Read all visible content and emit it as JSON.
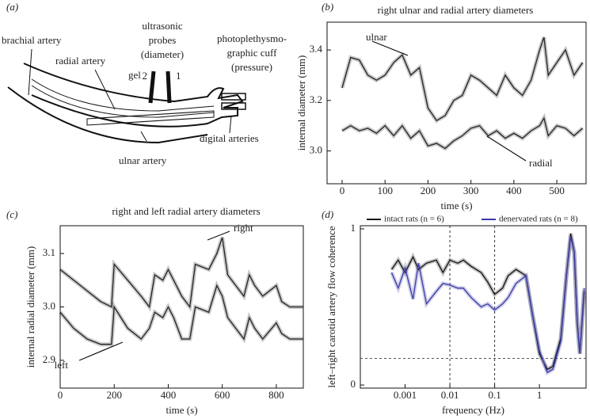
{
  "diagram": {
    "label": "(a)",
    "brachial": "brachial artery",
    "radial": "radial artery",
    "probes": [
      "ultrasonic",
      "probes",
      "(diameter)"
    ],
    "gel": "gel",
    "probe_numbers": [
      "2",
      "1"
    ],
    "cuff": [
      "photoplethysmo-",
      "graphic cuff",
      "(pressure)"
    ],
    "digital": "digital arteries",
    "ulnar": "ulnar artery"
  },
  "chart_data": [
    {
      "type": "line",
      "panel_label": "(b)",
      "title": "right ulnar and radial artery diameters",
      "x_label": "time (s)",
      "y_label": "internal diameter (mm)",
      "x": [
        0,
        20,
        40,
        60,
        80,
        100,
        120,
        140,
        160,
        180,
        200,
        220,
        240,
        260,
        280,
        300,
        320,
        340,
        360,
        380,
        400,
        420,
        440,
        460,
        470,
        480,
        500,
        520,
        540,
        560
      ],
      "series": [
        {
          "name": "ulnar",
          "color": "#222222",
          "values": [
            3.25,
            3.37,
            3.36,
            3.3,
            3.28,
            3.3,
            3.35,
            3.38,
            3.3,
            3.33,
            3.17,
            3.12,
            3.14,
            3.2,
            3.22,
            3.3,
            3.28,
            3.25,
            3.22,
            3.3,
            3.25,
            3.22,
            3.28,
            3.4,
            3.45,
            3.3,
            3.35,
            3.4,
            3.3,
            3.35
          ]
        },
        {
          "name": "radial",
          "color": "#222222",
          "values": [
            3.08,
            3.1,
            3.08,
            3.09,
            3.07,
            3.1,
            3.06,
            3.1,
            3.05,
            3.08,
            3.02,
            3.03,
            3.01,
            3.04,
            3.06,
            3.09,
            3.1,
            3.06,
            3.08,
            3.05,
            3.07,
            3.05,
            3.08,
            3.1,
            3.13,
            3.06,
            3.1,
            3.09,
            3.06,
            3.09
          ]
        }
      ],
      "xlim": [
        -35,
        568
      ],
      "xticks": [
        0,
        100,
        200,
        300,
        400,
        500
      ],
      "ylim": [
        2.87,
        3.51
      ],
      "yticks": [
        {
          "value": 3,
          "label": "3.0"
        },
        3.2,
        3.4
      ]
    },
    {
      "type": "line",
      "panel_label": "(c)",
      "title": "right and left radial artery diameters",
      "x_label": "time (s)",
      "y_label": "internal radial diameter (mm)",
      "x": [
        0,
        50,
        100,
        150,
        190,
        200,
        250,
        300,
        330,
        350,
        380,
        400,
        420,
        450,
        480,
        500,
        550,
        580,
        600,
        620,
        650,
        680,
        700,
        720,
        750,
        800,
        820,
        850,
        900
      ],
      "series": [
        {
          "name": "right",
          "color": "#222222",
          "values": [
            3.07,
            3.05,
            3.03,
            3.01,
            3.0,
            3.08,
            3.05,
            3.02,
            3.0,
            3.06,
            3.05,
            3.07,
            3.05,
            3.02,
            3.0,
            3.08,
            3.07,
            3.1,
            3.13,
            3.06,
            3.04,
            3.02,
            3.06,
            3.04,
            3.02,
            3.04,
            3.01,
            3.0,
            3.0
          ]
        },
        {
          "name": "left",
          "color": "#222222",
          "values": [
            2.99,
            2.96,
            2.94,
            2.93,
            2.93,
            3.0,
            2.96,
            2.94,
            2.96,
            2.99,
            2.98,
            3.0,
            2.98,
            2.94,
            2.94,
            3.0,
            2.99,
            3.04,
            3.02,
            2.98,
            2.96,
            2.94,
            2.98,
            2.96,
            2.94,
            2.97,
            2.95,
            2.94,
            2.94
          ]
        }
      ],
      "xlim": [
        0,
        900
      ],
      "xticks": [
        0,
        200,
        400,
        600,
        800
      ],
      "ylim": [
        2.848,
        3.152
      ],
      "yticks": [
        2.9,
        {
          "value": 3,
          "label": "3.0"
        },
        3.1
      ]
    },
    {
      "type": "line",
      "panel_label": "(d)",
      "x_label": "frequency (Hz)",
      "y_label": "left–right carotid artery flow coherence",
      "log_x": true,
      "legend": "top",
      "x": [
        0.0005,
        0.0007,
        0.001,
        0.0015,
        0.002,
        0.003,
        0.005,
        0.007,
        0.01,
        0.015,
        0.02,
        0.03,
        0.05,
        0.07,
        0.1,
        0.15,
        0.2,
        0.3,
        0.5,
        0.7,
        1,
        1.5,
        2,
        3,
        4,
        5,
        6,
        7,
        8,
        10
      ],
      "series": [
        {
          "name": "intact rats (n = 6)",
          "color": "#111111",
          "values": [
            0.74,
            0.8,
            0.72,
            0.82,
            0.74,
            0.78,
            0.8,
            0.72,
            0.8,
            0.78,
            0.8,
            0.76,
            0.72,
            0.66,
            0.58,
            0.62,
            0.7,
            0.74,
            0.7,
            0.45,
            0.2,
            0.1,
            0.12,
            0.3,
            0.7,
            0.97,
            0.85,
            0.4,
            0.2,
            0.6
          ]
        },
        {
          "name": "denervated rats (n = 8)",
          "color": "#3a3aa8",
          "values": [
            0.72,
            0.62,
            0.75,
            0.55,
            0.78,
            0.52,
            0.6,
            0.65,
            0.64,
            0.62,
            0.62,
            0.56,
            0.5,
            0.52,
            0.48,
            0.52,
            0.56,
            0.65,
            0.7,
            0.45,
            0.22,
            0.08,
            0.1,
            0.28,
            0.7,
            0.95,
            0.85,
            0.4,
            0.2,
            0.62
          ]
        }
      ],
      "xlim": [
        0.0001,
        11
      ],
      "xticks": [
        0.001,
        0.01,
        0.1,
        1
      ],
      "ylim": [
        -0.02,
        1.02
      ],
      "yticks": [
        0,
        1
      ],
      "reference_lines": {
        "x": [
          0.01,
          0.1
        ],
        "y": [
          0.17
        ]
      }
    }
  ]
}
